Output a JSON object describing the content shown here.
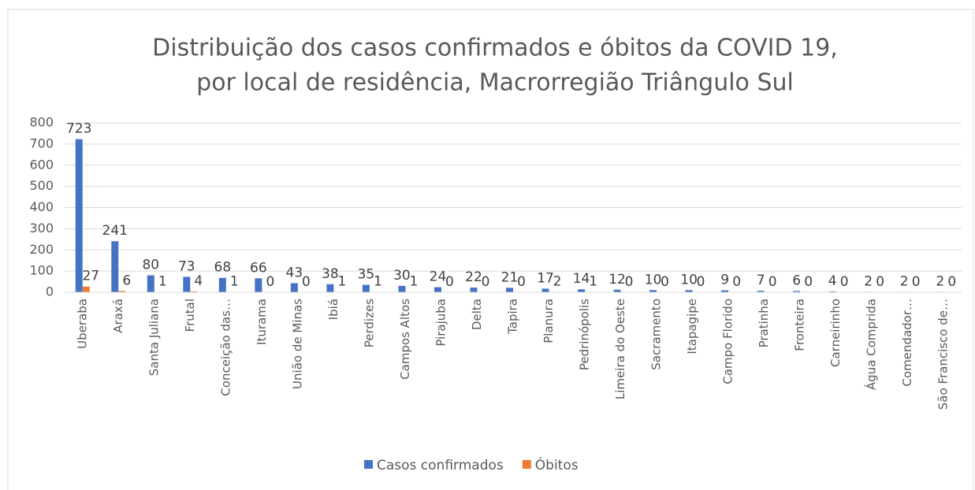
{
  "chart_data": {
    "type": "bar",
    "title": [
      "Distribuição dos casos confirmados e óbitos da COVID 19,",
      "por local de residência, Macrorregião Triângulo Sul"
    ],
    "categories": [
      "Uberaba",
      "Araxá",
      "Santa Juliana",
      "Frutal",
      "Conceição das…",
      "Iturama",
      "União de Minas",
      "Ibiá",
      "Perdizes",
      "Campos Altos",
      "Pirajuba",
      "Delta",
      "Tapira",
      "Planura",
      "Pedrinópolis",
      "Limeira do Oeste",
      "Sacramento",
      "Itapagipe",
      "Campo Florido",
      "Pratinha",
      "Fronteira",
      "Carneirinho",
      "Água Comprida",
      "Comendador…",
      "São Francisco de…"
    ],
    "series": [
      {
        "name": "Casos confirmados",
        "color": "#4472c4",
        "values": [
          723,
          241,
          80,
          73,
          68,
          66,
          43,
          38,
          35,
          30,
          24,
          22,
          21,
          17,
          14,
          12,
          10,
          10,
          9,
          7,
          6,
          4,
          2,
          2,
          2
        ]
      },
      {
        "name": "Óbitos",
        "color": "#ed7d31",
        "values": [
          27,
          6,
          1,
          4,
          1,
          0,
          0,
          1,
          1,
          1,
          0,
          0,
          0,
          2,
          1,
          0,
          0,
          0,
          0,
          0,
          0,
          0,
          0,
          0,
          0
        ]
      }
    ],
    "ylim": [
      0,
      800
    ],
    "yticks": [
      0,
      100,
      200,
      300,
      400,
      500,
      600,
      700,
      800
    ],
    "grid": true,
    "legend": "bottom"
  }
}
